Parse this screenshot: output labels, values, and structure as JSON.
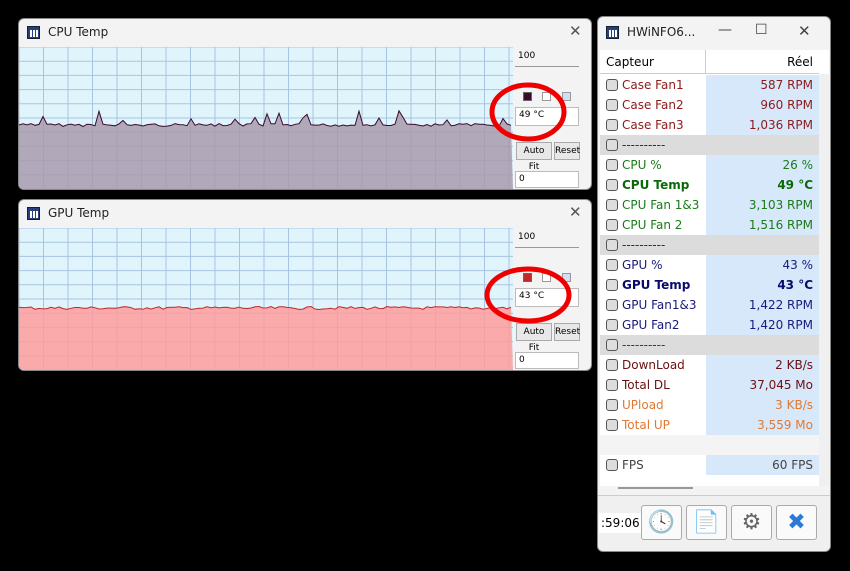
{
  "graphs": [
    {
      "title": "CPU Temp",
      "max": "100",
      "min": "0",
      "current": "49 °C",
      "auto_fit": "Auto Fit",
      "reset": "Reset",
      "color": "#3a0a2a",
      "fill": "#a99aae"
    },
    {
      "title": "GPU Temp",
      "max": "100",
      "min": "0",
      "current": "43 °C",
      "auto_fit": "Auto Fit",
      "reset": "Reset",
      "color": "#c0282a",
      "fill": "#ff9c9c"
    }
  ],
  "sensors": {
    "title": "HWiNFO6...",
    "header": {
      "label": "Capteur",
      "value": "Réel"
    },
    "rows": [
      {
        "label": "Case Fan1",
        "value": "587 RPM",
        "color": "#8b1a1a"
      },
      {
        "label": "Case Fan2",
        "value": "960 RPM",
        "color": "#8b1a1a"
      },
      {
        "label": "Case Fan3",
        "value": "1,036 RPM",
        "color": "#8b1a1a"
      },
      {
        "label": "----------",
        "color": "#1a2a8b"
      },
      {
        "label": "CPU %",
        "value": "26 %",
        "color": "#1a7a1a"
      },
      {
        "label": "CPU Temp",
        "value": "49 °C",
        "color": "#0a6a0a",
        "bold": true
      },
      {
        "label": "CPU Fan 1&3",
        "value": "3,103 RPM",
        "color": "#1a7a1a"
      },
      {
        "label": "CPU Fan 2",
        "value": "1,516 RPM",
        "color": "#1a7a1a"
      },
      {
        "label": "----------",
        "color": "#1a2a8b"
      },
      {
        "label": "GPU %",
        "value": "43 %",
        "color": "#1a1a7a"
      },
      {
        "label": "GPU Temp",
        "value": "43 °C",
        "color": "#0a0a6a",
        "bold": true
      },
      {
        "label": "GPU Fan1&3",
        "value": "1,422 RPM",
        "color": "#1a1a7a"
      },
      {
        "label": "GPU Fan2",
        "value": "1,420 RPM",
        "color": "#1a1a7a"
      },
      {
        "label": "----------",
        "color": "#8b1a1a"
      },
      {
        "label": "DownLoad",
        "value": "2 KB/s",
        "color": "#6a1010"
      },
      {
        "label": "Total DL",
        "value": "37,045 Mo",
        "color": "#6a1010"
      },
      {
        "label": "UPload",
        "value": "3 KB/s",
        "color": "#e07a30"
      },
      {
        "label": "Total UP",
        "value": "3,559 Mo",
        "color": "#e07a30"
      },
      null,
      {
        "label": "FPS",
        "value": "60 FPS",
        "color": "#444444"
      }
    ],
    "clock": ":59:06"
  }
}
